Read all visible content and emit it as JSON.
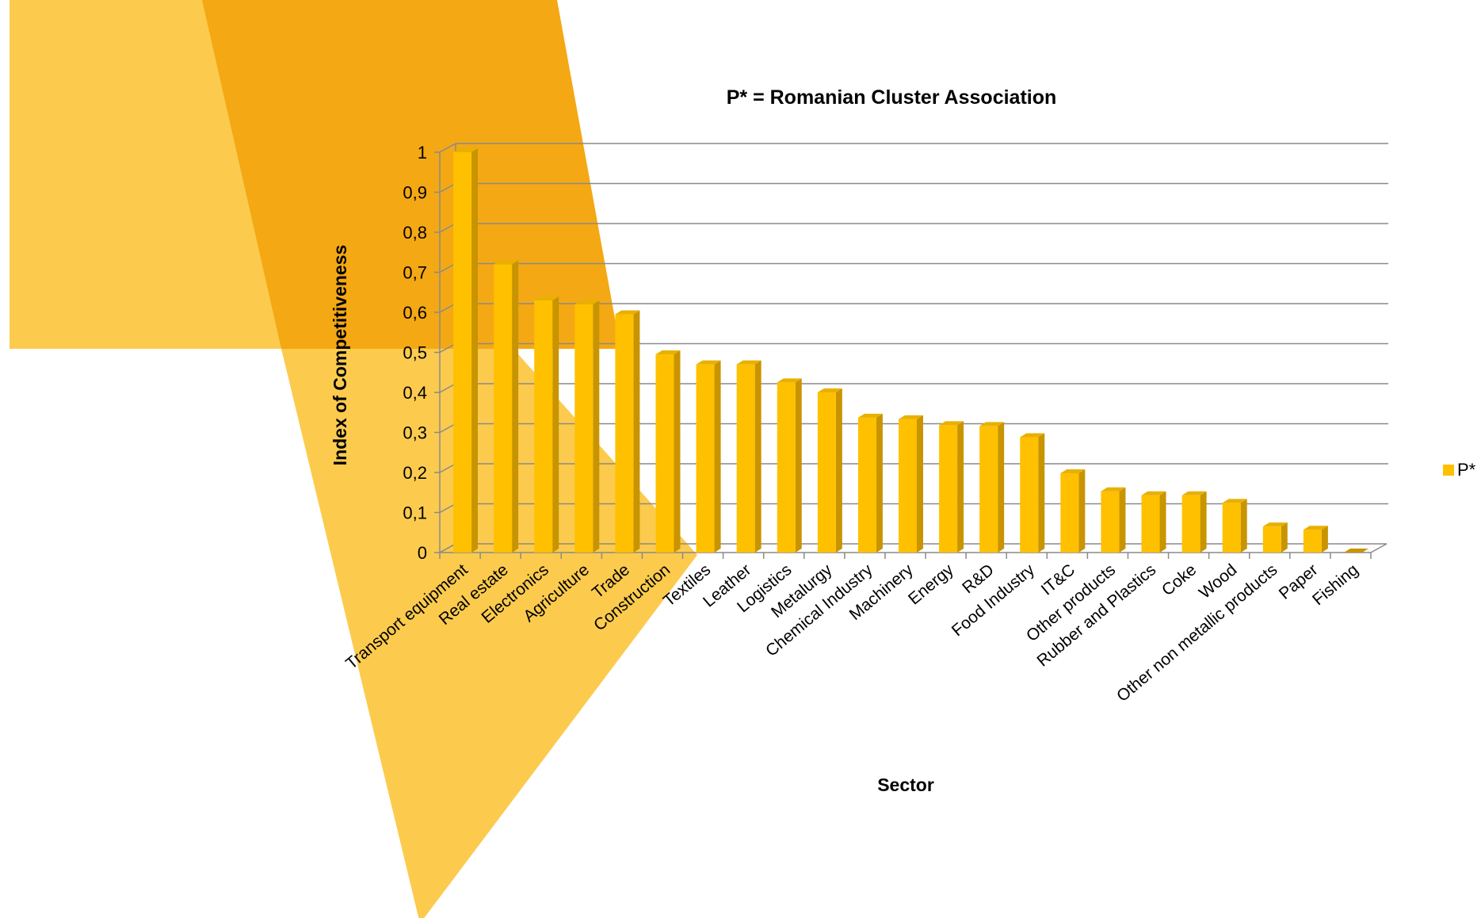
{
  "chart_data": {
    "type": "bar",
    "title": "P* = Romanian Cluster Association",
    "xlabel": "Sector",
    "ylabel": "Index of Competitiveness",
    "ylim": [
      0,
      1
    ],
    "yticks": [
      "0",
      "0,1",
      "0,2",
      "0,3",
      "0,4",
      "0,5",
      "0,6",
      "0,7",
      "0,8",
      "0,9",
      "1"
    ],
    "grid": true,
    "legend_position": "right",
    "categories": [
      "Transport equipment",
      "Real estate",
      "Electronics",
      "Agriculture",
      "Trade",
      "Construction",
      "Textiles",
      "Leather",
      "Logistics",
      "Metalurgy",
      "Chemical Industry",
      "Machinery",
      "Energy",
      "R&D",
      "Food Industry",
      "IT&C",
      "Other products",
      "Rubber and Plastics",
      "Coke",
      "Wood",
      "Other non metallic products",
      "Paper",
      "Fishing"
    ],
    "series": [
      {
        "name": "P*",
        "color": "#FFC000",
        "values": [
          1.0,
          0.72,
          0.63,
          0.62,
          0.595,
          0.495,
          0.47,
          0.47,
          0.425,
          0.4,
          0.337,
          0.333,
          0.318,
          0.316,
          0.288,
          0.198,
          0.153,
          0.143,
          0.143,
          0.124,
          0.065,
          0.057,
          0.0
        ]
      }
    ],
    "background_colors": [
      "#FCCB4E",
      "#F4A814"
    ]
  }
}
